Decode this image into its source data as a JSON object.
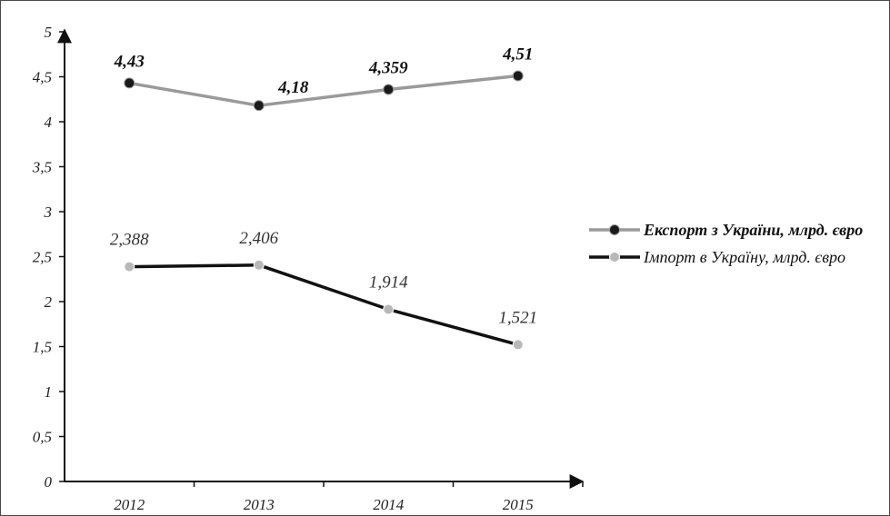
{
  "chart_data": {
    "type": "line",
    "categories": [
      "2012",
      "2013",
      "2014",
      "2015"
    ],
    "y_ticks": [
      "0",
      "0,5",
      "1",
      "1,5",
      "2",
      "2,5",
      "3",
      "3,5",
      "4",
      "4,5",
      "5"
    ],
    "ylim": [
      0,
      5
    ],
    "grid": false,
    "legend_position": "right",
    "series": [
      {
        "name": "Експорт з України, млрд. євро",
        "values": [
          4.43,
          4.18,
          4.359,
          4.51
        ],
        "labels": [
          "4,43",
          "4,18",
          "4,359",
          "4,51"
        ],
        "line_color": "#9a9a9a",
        "marker_color": "#1a1a1a",
        "label_weight": "bold"
      },
      {
        "name": "Імпорт в Україну, млрд. євро",
        "values": [
          2.388,
          2.406,
          1.914,
          1.521
        ],
        "labels": [
          "2,388",
          "2,406",
          "1,914",
          "1,521"
        ],
        "line_color": "#111111",
        "marker_color": "#b8b8b8",
        "label_weight": "normal"
      }
    ]
  }
}
